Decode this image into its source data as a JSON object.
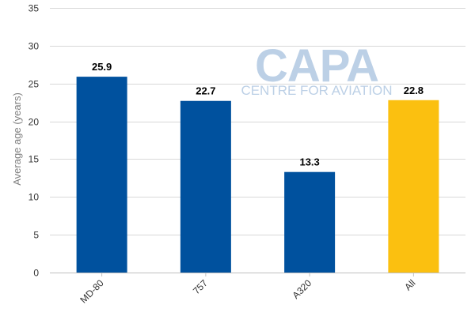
{
  "chart_data": {
    "type": "bar",
    "title": "",
    "xlabel": "",
    "ylabel": "Average age (years)",
    "categories": [
      "MD-80",
      "757",
      "A320",
      "All"
    ],
    "values": [
      25.9,
      22.7,
      13.3,
      22.8
    ],
    "data_labels": [
      "25.9",
      "22.7",
      "13.3",
      "22.8"
    ],
    "bar_colors": [
      "#00519e",
      "#00519e",
      "#00519e",
      "#fbc010"
    ],
    "ylim": [
      0,
      35
    ],
    "yticks": [
      0,
      5,
      10,
      15,
      20,
      25,
      30,
      35
    ],
    "grid": true,
    "legend": "none"
  },
  "watermark": {
    "brand": "CAPA",
    "tagline": "CENTRE FOR AVIATION"
  }
}
